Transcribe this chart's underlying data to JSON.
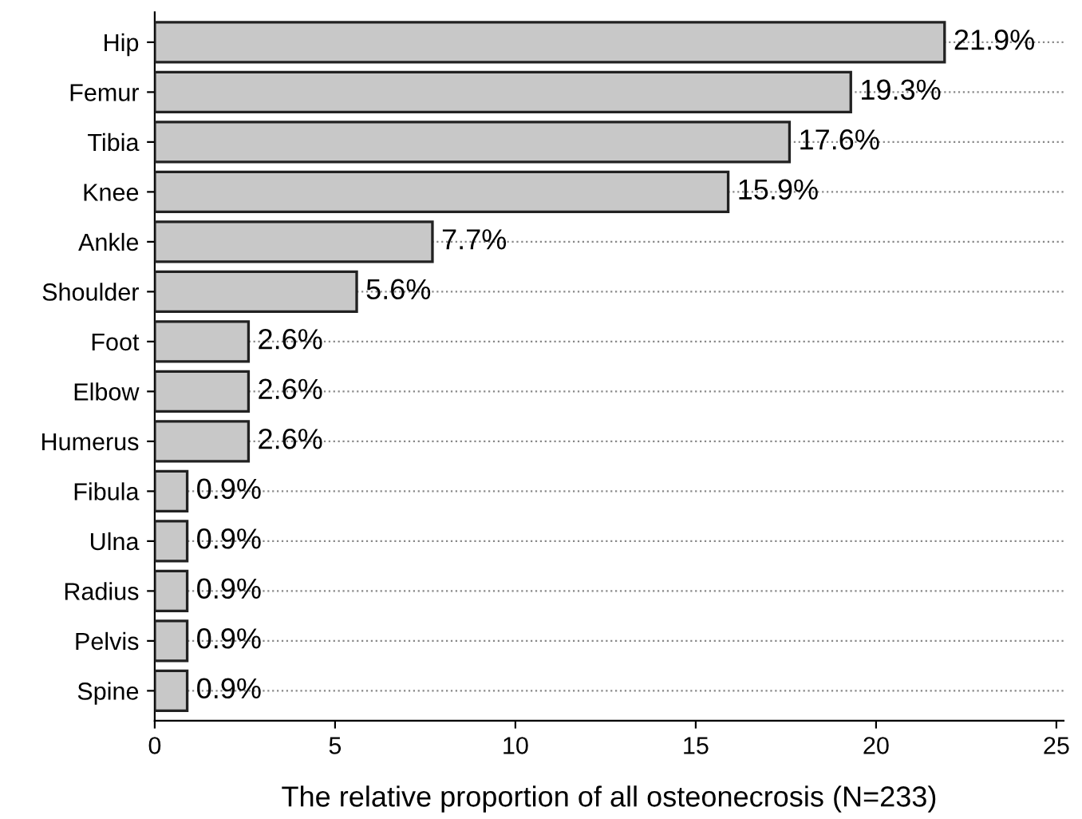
{
  "chart_data": {
    "type": "bar",
    "orientation": "horizontal",
    "xlabel": "The relative proportion of all osteonecrosis (N=233)",
    "categories": [
      "Hip",
      "Femur",
      "Tibia",
      "Knee",
      "Ankle",
      "Shoulder",
      "Foot",
      "Elbow",
      "Humerus",
      "Fibula",
      "Ulna",
      "Radius",
      "Pelvis",
      "Spine"
    ],
    "values": [
      21.9,
      19.3,
      17.6,
      15.9,
      7.7,
      5.6,
      2.6,
      2.6,
      2.6,
      0.9,
      0.9,
      0.9,
      0.9,
      0.9
    ],
    "value_labels": [
      "21.9%",
      "19.3%",
      "17.6%",
      "15.9%",
      "7.7%",
      "5.6%",
      "2.6%",
      "2.6%",
      "2.6%",
      "0.9%",
      "0.9%",
      "0.9%",
      "0.9%",
      "0.9%"
    ],
    "color": "#c8c8c8",
    "xlim": [
      0,
      25.2
    ],
    "xticks": [
      0,
      5,
      10,
      15,
      20,
      25
    ],
    "grid": "y"
  }
}
